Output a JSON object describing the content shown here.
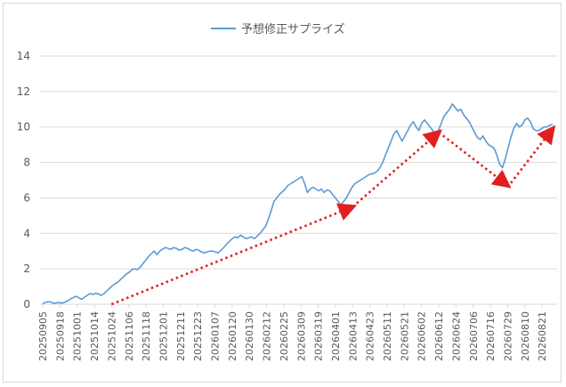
{
  "chart_data": {
    "type": "line",
    "title": "",
    "xlabel": "",
    "ylabel": "",
    "ylim": [
      0,
      14
    ],
    "yticks": [
      0,
      2,
      4,
      6,
      8,
      10,
      12,
      14
    ],
    "grid": true,
    "legend_position": "top-center",
    "x_tick_labels": [
      "20250905",
      "20250918",
      "20251001",
      "20251014",
      "20251024",
      "20251106",
      "20251118",
      "20251201",
      "20251211",
      "20251223",
      "20260107",
      "20260120",
      "20260130",
      "20260212",
      "20260225",
      "20260309",
      "20260319",
      "20260401",
      "20260413",
      "20260423",
      "20260511",
      "20260521",
      "20260602",
      "20260612",
      "20260624",
      "20260706",
      "20260716",
      "20260729",
      "20260810",
      "20260821"
    ],
    "series": [
      {
        "name": "予想修正サプライズ",
        "color": "#5b9bd5",
        "x_start_tick": "20250905",
        "x_end_tick": "20260829",
        "values": [
          0.05,
          0.1,
          0.15,
          0.12,
          0.05,
          0.08,
          0.1,
          0.06,
          0.12,
          0.2,
          0.3,
          0.38,
          0.45,
          0.35,
          0.28,
          0.4,
          0.5,
          0.6,
          0.55,
          0.62,
          0.58,
          0.5,
          0.6,
          0.75,
          0.9,
          1.05,
          1.15,
          1.25,
          1.4,
          1.55,
          1.7,
          1.8,
          1.95,
          2.0,
          1.95,
          2.1,
          2.3,
          2.5,
          2.7,
          2.85,
          3.0,
          2.8,
          3.0,
          3.1,
          3.2,
          3.15,
          3.1,
          3.2,
          3.15,
          3.05,
          3.1,
          3.2,
          3.15,
          3.05,
          3.0,
          3.1,
          3.05,
          2.95,
          2.9,
          2.95,
          3.0,
          3.0,
          2.95,
          2.9,
          3.05,
          3.2,
          3.4,
          3.55,
          3.7,
          3.8,
          3.75,
          3.9,
          3.8,
          3.7,
          3.75,
          3.8,
          3.7,
          3.85,
          4.0,
          4.2,
          4.4,
          4.8,
          5.3,
          5.8,
          6.0,
          6.2,
          6.35,
          6.5,
          6.7,
          6.8,
          6.9,
          7.0,
          7.1,
          7.2,
          6.8,
          6.3,
          6.5,
          6.6,
          6.5,
          6.4,
          6.5,
          6.3,
          6.45,
          6.4,
          6.2,
          6.0,
          5.8,
          5.6,
          5.8,
          6.0,
          6.3,
          6.6,
          6.8,
          6.9,
          7.0,
          7.1,
          7.2,
          7.3,
          7.35,
          7.4,
          7.5,
          7.7,
          8.0,
          8.4,
          8.8,
          9.2,
          9.6,
          9.8,
          9.5,
          9.2,
          9.5,
          9.8,
          10.1,
          10.3,
          10.0,
          9.8,
          10.2,
          10.4,
          10.2,
          10.0,
          9.8,
          9.6,
          9.8,
          10.2,
          10.6,
          10.8,
          11.0,
          11.3,
          11.1,
          10.9,
          11.0,
          10.7,
          10.5,
          10.3,
          10.0,
          9.7,
          9.4,
          9.3,
          9.5,
          9.2,
          9.0,
          8.9,
          8.8,
          8.4,
          7.9,
          7.7,
          8.2,
          8.8,
          9.4,
          9.9,
          10.2,
          10.0,
          10.1,
          10.4,
          10.5,
          10.3,
          9.9,
          9.8,
          9.8,
          9.9,
          10.0,
          10.0,
          10.1,
          10.15
        ]
      }
    ],
    "annotations": [
      {
        "type": "dotted-arrow",
        "color": "#e02020",
        "from": {
          "x": "20251024",
          "y": 0.0
        },
        "to": {
          "x": "20260413",
          "y": 5.5
        }
      },
      {
        "type": "dotted-arrow",
        "color": "#e02020",
        "from": {
          "x": "20260413",
          "y": 5.5
        },
        "to": {
          "x": "20260612",
          "y": 9.7
        }
      },
      {
        "type": "dotted-arrow",
        "color": "#e02020",
        "from": {
          "x": "20260612",
          "y": 9.7
        },
        "to": {
          "x": "20260729",
          "y": 6.7
        }
      },
      {
        "type": "dotted-arrow",
        "color": "#e02020",
        "from": {
          "x": "20260729",
          "y": 6.6
        },
        "to": {
          "x": "20260829",
          "y": 9.9
        }
      }
    ]
  }
}
